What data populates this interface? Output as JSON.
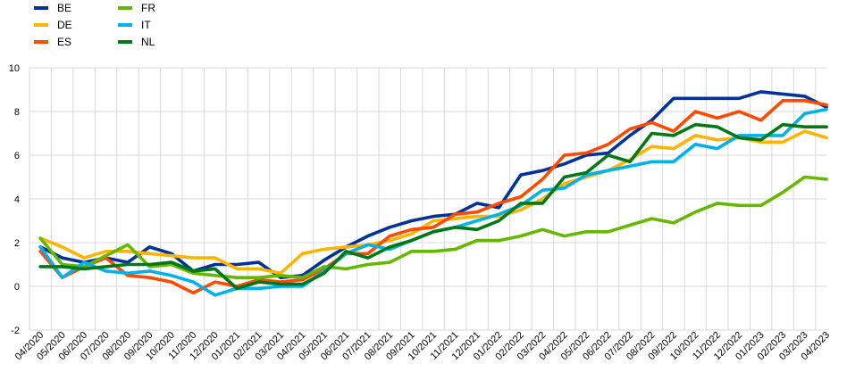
{
  "chart_data": {
    "type": "line",
    "title": "",
    "xlabel": "",
    "ylabel": "",
    "ylim": [
      -2,
      10
    ],
    "yticks": [
      -2,
      0,
      2,
      4,
      6,
      8,
      10
    ],
    "grid": true,
    "legend_position": "top-left",
    "categories": [
      "04/2020",
      "05/2020",
      "06/2020",
      "07/2020",
      "08/2020",
      "09/2020",
      "10/2020",
      "11/2020",
      "12/2020",
      "01/2021",
      "02/2021",
      "03/2021",
      "04/2021",
      "05/2021",
      "06/2021",
      "07/2021",
      "08/2021",
      "09/2021",
      "10/2021",
      "11/2021",
      "12/2021",
      "01/2022",
      "02/2022",
      "03/2022",
      "04/2022",
      "05/2022",
      "06/2022",
      "07/2022",
      "08/2022",
      "09/2022",
      "10/2022",
      "11/2022",
      "12/2022",
      "01/2023",
      "02/2023",
      "03/2023",
      "04/2023"
    ],
    "series": [
      {
        "name": "BE",
        "color": "#003299",
        "values": [
          1.8,
          1.3,
          1.1,
          1.3,
          1.1,
          1.8,
          1.5,
          0.7,
          1.0,
          1.0,
          1.1,
          0.4,
          0.5,
          1.2,
          1.8,
          2.3,
          2.7,
          3.0,
          3.2,
          3.3,
          3.8,
          3.6,
          5.1,
          5.3,
          5.6,
          6.0,
          6.1,
          6.9,
          7.6,
          8.6,
          8.6,
          8.6,
          8.6,
          8.9,
          8.8,
          8.7,
          8.2
        ]
      },
      {
        "name": "DE",
        "color": "#FFB400",
        "values": [
          2.2,
          1.8,
          1.3,
          1.6,
          1.6,
          1.5,
          1.4,
          1.3,
          1.3,
          0.8,
          0.8,
          0.6,
          1.5,
          1.7,
          1.8,
          1.9,
          2.1,
          2.4,
          3.0,
          3.1,
          3.2,
          3.2,
          3.5,
          4.0,
          4.7,
          5.0,
          5.3,
          5.8,
          6.4,
          6.3,
          6.9,
          6.7,
          6.8,
          6.6,
          6.6,
          7.1,
          6.8
        ]
      },
      {
        "name": "ES",
        "color": "#FF4B00",
        "values": [
          1.6,
          0.4,
          0.9,
          1.3,
          0.5,
          0.4,
          0.2,
          -0.3,
          0.2,
          0.0,
          0.3,
          0.2,
          0.3,
          0.8,
          1.5,
          1.5,
          2.3,
          2.6,
          2.7,
          3.3,
          3.4,
          3.8,
          4.1,
          4.9,
          6.0,
          6.1,
          6.5,
          7.2,
          7.5,
          7.1,
          8.0,
          7.7,
          8.0,
          7.6,
          8.5,
          8.5,
          8.3
        ]
      },
      {
        "name": "FR",
        "color": "#65B800",
        "values": [
          2.2,
          1.0,
          0.9,
          1.4,
          1.9,
          0.9,
          1.0,
          0.6,
          0.5,
          0.4,
          0.4,
          0.5,
          0.4,
          0.9,
          0.8,
          1.0,
          1.1,
          1.6,
          1.6,
          1.7,
          2.1,
          2.1,
          2.3,
          2.6,
          2.3,
          2.5,
          2.5,
          2.8,
          3.1,
          2.9,
          3.4,
          3.8,
          3.7,
          3.7,
          4.3,
          5.0,
          4.9
        ]
      },
      {
        "name": "IT",
        "color": "#00B1EA",
        "values": [
          1.8,
          0.4,
          1.1,
          0.7,
          0.6,
          0.7,
          0.5,
          0.2,
          -0.4,
          -0.1,
          -0.1,
          0.0,
          0.0,
          0.7,
          1.5,
          1.9,
          1.7,
          2.1,
          2.5,
          2.7,
          3.0,
          3.3,
          3.7,
          4.4,
          4.5,
          5.1,
          5.3,
          5.5,
          5.7,
          5.7,
          6.5,
          6.3,
          6.9,
          6.9,
          6.9,
          7.9,
          8.1
        ]
      },
      {
        "name": "NL",
        "color": "#007816",
        "values": [
          0.9,
          0.9,
          0.8,
          0.9,
          1.0,
          1.0,
          1.1,
          0.7,
          0.8,
          -0.1,
          0.2,
          0.1,
          0.1,
          0.6,
          1.6,
          1.3,
          1.8,
          2.1,
          2.5,
          2.7,
          2.6,
          3.0,
          3.8,
          3.8,
          5.0,
          5.2,
          6.0,
          5.7,
          7.0,
          6.9,
          7.4,
          7.3,
          6.8,
          6.7,
          7.4,
          7.3,
          7.3
        ]
      }
    ]
  }
}
